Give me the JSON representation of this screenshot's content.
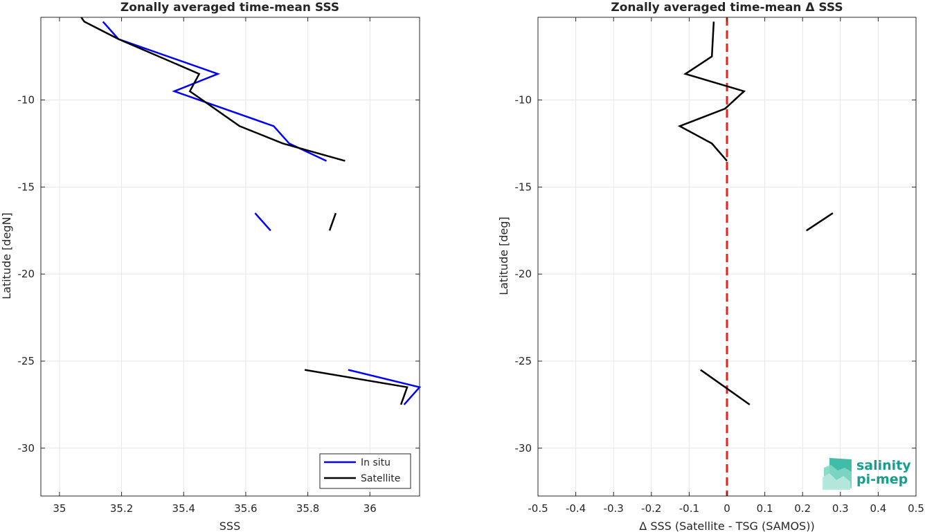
{
  "chart_data": [
    {
      "type": "line",
      "title": "Zonally averaged time-mean SSS",
      "xlabel": "SSS",
      "ylabel": "Latitude [degN]",
      "xlim": [
        34.94,
        36.16
      ],
      "ylim": [
        -32.75,
        -5.25
      ],
      "xticks": [
        35,
        35.2,
        35.4,
        35.6,
        35.8,
        36
      ],
      "xtick_labels": [
        "35",
        "35.2",
        "35.4",
        "35.6",
        "35.8",
        "36"
      ],
      "yticks": [
        -30,
        -25,
        -20,
        -15,
        -10
      ],
      "ytick_labels": [
        "-30",
        "-25",
        "-20",
        "-15",
        "-10"
      ],
      "grid": true,
      "legend_position": "bottom-right",
      "series": [
        {
          "name": "In situ",
          "color": "#0000ff",
          "segments": [
            [
              [
                35.14,
                -5.5
              ],
              [
                35.19,
                -6.5
              ],
              [
                35.51,
                -8.5
              ],
              [
                35.37,
                -9.5
              ],
              [
                35.69,
                -11.5
              ],
              [
                35.74,
                -12.5
              ],
              [
                35.86,
                -13.5
              ]
            ],
            [
              [
                35.63,
                -16.5
              ],
              [
                35.68,
                -17.5
              ]
            ],
            [
              [
                35.93,
                -25.5
              ],
              [
                36.16,
                -26.5
              ],
              [
                36.11,
                -27.5
              ]
            ]
          ]
        },
        {
          "name": "Satellite",
          "color": "#000000",
          "segments": [
            [
              [
                35.07,
                -5.25
              ],
              [
                35.08,
                -5.5
              ],
              [
                35.19,
                -6.5
              ],
              [
                35.45,
                -8.5
              ],
              [
                35.42,
                -9.5
              ],
              [
                35.58,
                -11.5
              ],
              [
                35.72,
                -12.5
              ],
              [
                35.92,
                -13.5
              ]
            ],
            [
              [
                35.89,
                -16.5
              ],
              [
                35.87,
                -17.5
              ]
            ],
            [
              [
                35.79,
                -25.5
              ],
              [
                36.12,
                -26.5
              ],
              [
                36.1,
                -27.5
              ]
            ]
          ]
        }
      ]
    },
    {
      "type": "line",
      "title": "Zonally averaged time-mean Δ SSS",
      "xlabel": "Δ SSS (Satellite - TSG (SAMOS))",
      "ylabel": "Latitude [deg]",
      "xlim": [
        -0.5,
        0.5
      ],
      "ylim": [
        -32.75,
        -5.25
      ],
      "xticks": [
        -0.5,
        -0.4,
        -0.3,
        -0.2,
        -0.1,
        0,
        0.1,
        0.2,
        0.3,
        0.4,
        0.5
      ],
      "xtick_labels": [
        "-0.5",
        "-0.4",
        "-0.3",
        "-0.2",
        "-0.1",
        "0",
        "0.1",
        "0.2",
        "0.3",
        "0.4",
        "0.5"
      ],
      "yticks": [
        -30,
        -25,
        -20,
        -15,
        -10
      ],
      "ytick_labels": [
        "-30",
        "-25",
        "-20",
        "-15",
        "-10"
      ],
      "grid": true,
      "zero_line": {
        "x": 0,
        "color": "#e8211a",
        "style": "dashed"
      },
      "series": [
        {
          "color": "#000000",
          "segments": [
            [
              [
                -0.035,
                -5.5
              ],
              [
                -0.04,
                -7.5
              ],
              [
                -0.11,
                -8.5
              ],
              [
                0.045,
                -9.5
              ],
              [
                -0.005,
                -10.5
              ],
              [
                -0.125,
                -11.5
              ],
              [
                -0.04,
                -12.5
              ],
              [
                0.0,
                -13.5
              ]
            ],
            [
              [
                0.21,
                -17.5
              ],
              [
                0.28,
                -16.5
              ]
            ],
            [
              [
                -0.07,
                -25.5
              ],
              [
                -0.005,
                -26.5
              ],
              [
                0.06,
                -27.5
              ]
            ]
          ]
        }
      ]
    }
  ],
  "logo": {
    "line1": "salinity",
    "line2": "pi-mep",
    "color": "#1a9e8c"
  }
}
